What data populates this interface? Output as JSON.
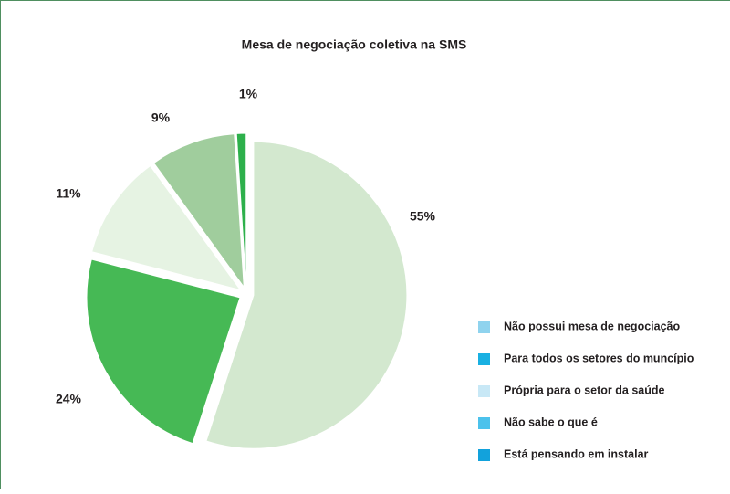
{
  "chart_data": {
    "type": "pie",
    "title": "Mesa de negociação coletiva na SMS",
    "categories": [
      "Não possui mesa de negociação",
      "Para todos os setores do muncípio",
      "Própria para o setor da saúde",
      "Não sabe o que é",
      "Está pensando em instalar"
    ],
    "values": [
      55,
      24,
      11,
      9,
      1
    ],
    "value_labels": [
      "55%",
      "24%",
      "11%",
      "9%",
      "1%"
    ],
    "colors": [
      "#d3e8cf",
      "#46b955",
      "#e6f3e3",
      "#a0cd9d",
      "#2db04b"
    ],
    "legend_colors": [
      "#8fd3ee",
      "#19b0e2",
      "#c8e8f6",
      "#4cc2ec",
      "#12a2dc"
    ],
    "legend": "right"
  }
}
